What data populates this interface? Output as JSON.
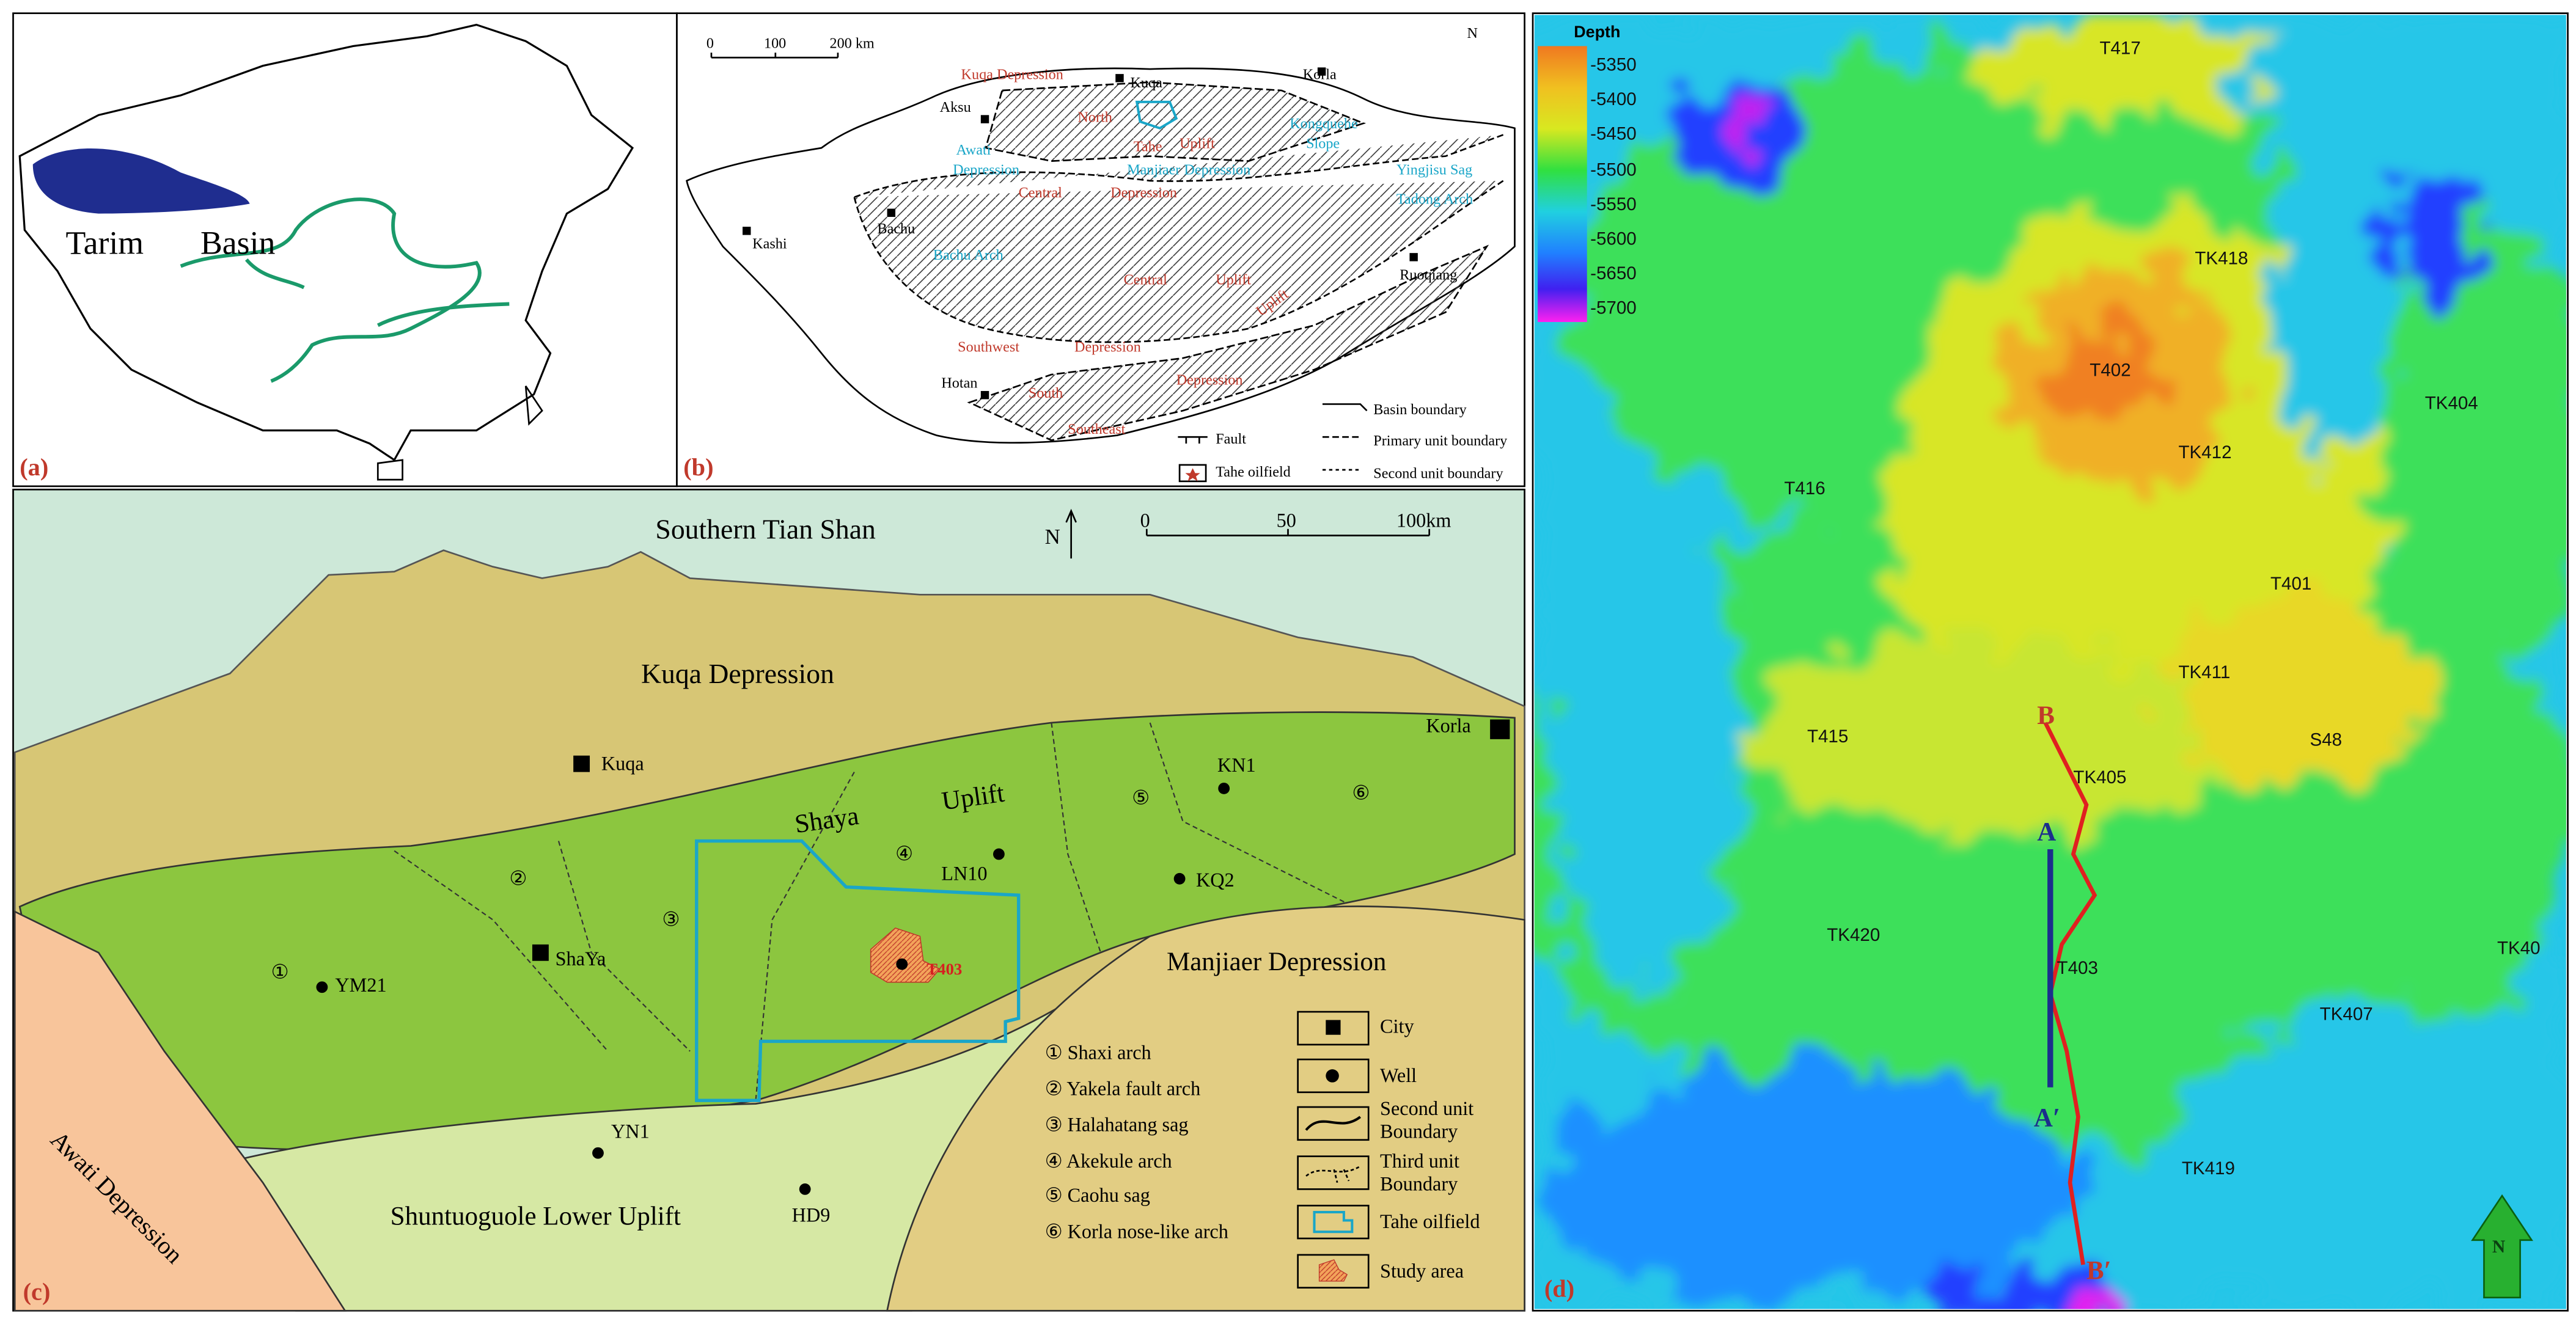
{
  "panel_a": {
    "label": "(a)",
    "texts": [
      "Tarim",
      "Basin"
    ]
  },
  "panel_b": {
    "label": "(b)",
    "scale": [
      "0",
      "100",
      "200 km"
    ],
    "north": "N",
    "places": [
      "Kuqa Depression",
      "Kuqa",
      "Korla",
      "Aksu",
      "North",
      "Uplift",
      "Tahe",
      "Kongquehe",
      "Slope",
      "Awati",
      "Depression",
      "Manjiaer Depression",
      "Central",
      "Depression",
      "Yingjisu Sag",
      "Tadong Arch",
      "Kashi",
      "Bachu",
      "Bachu Arch",
      "Central",
      "Uplift",
      "Ruoqiang",
      "Southwest",
      "Depression",
      "Hotan",
      "South",
      "Southeast",
      "Depression",
      "Uplift"
    ],
    "legend": [
      "Basin boundary",
      "Fault",
      "Primary unit boundary",
      "Tahe oilfield",
      "Second unit boundary"
    ]
  },
  "panel_c": {
    "label": "(c)",
    "title": "Southern Tian Shan",
    "north": "N",
    "scale": [
      "0",
      "50",
      "100km"
    ],
    "places": [
      "Kuqa Depression",
      "Kuqa",
      "Korla",
      "Shaya",
      "Uplift",
      "KN1",
      "⑤",
      "⑥",
      "④",
      "LN10",
      "KQ2",
      "②",
      "③",
      "ShaYa",
      "①",
      "YM21",
      "T403",
      "Manjiaer Depression",
      "YN1",
      "HD9",
      "Shuntuoguole Lower Uplift",
      "Awati Depression"
    ],
    "units": [
      "① Shaxi arch",
      "② Yakela fault arch",
      "③ Halahatang sag",
      "④ Akekule arch",
      "⑤ Caohu sag",
      "⑥ Korla nose-like arch"
    ],
    "legend": [
      "City",
      "Well",
      "Second unit",
      "Boundary",
      "Third unit",
      "Boundary",
      "Tahe oilfield",
      "Study area"
    ]
  },
  "panel_d": {
    "label": "(d)",
    "colorbar_title": "Depth",
    "colorbar_ticks": [
      "-5350",
      "-5400",
      "-5450",
      "-5500",
      "-5550",
      "-5600",
      "-5650",
      "-5700"
    ],
    "wells": [
      "T417",
      "TK418",
      "T402",
      "TK404",
      "TK412",
      "T416",
      "T401",
      "TK411",
      "T415",
      "S48",
      "TK405",
      "TK420",
      "T403",
      "TK40",
      "TK407",
      "TK419"
    ],
    "section_labels": [
      "B",
      "A",
      "A′",
      "B′"
    ],
    "north": "N"
  }
}
